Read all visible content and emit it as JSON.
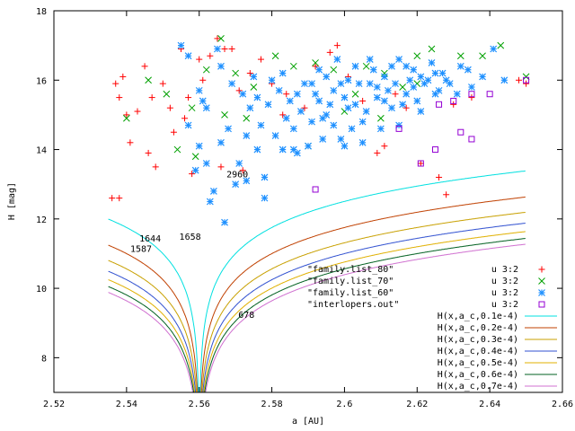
{
  "chart_data": {
    "type": "scatter",
    "xlabel": "a [AU]",
    "ylabel": "H [mag]",
    "xlim": [
      2.52,
      2.66
    ],
    "ylim": [
      7,
      18
    ],
    "x_ticks": [
      "2.52",
      "2.54",
      "2.56",
      "2.58",
      "2.6",
      "2.62",
      "2.64",
      "2.66"
    ],
    "y_ticks": [
      "8",
      "10",
      "12",
      "14",
      "16",
      "18"
    ],
    "grid": false,
    "legend_placement": "bottom-right",
    "series": [
      {
        "name": "\"family.list_80\"",
        "legend_sample": "u 3:2",
        "marker": "plus",
        "color": "#ff0000",
        "points": [
          [
            2.536,
            12.6
          ],
          [
            2.538,
            12.6
          ],
          [
            2.537,
            15.9
          ],
          [
            2.538,
            15.5
          ],
          [
            2.539,
            16.1
          ],
          [
            2.54,
            15.0
          ],
          [
            2.541,
            14.2
          ],
          [
            2.543,
            15.1
          ],
          [
            2.545,
            16.4
          ],
          [
            2.546,
            13.9
          ],
          [
            2.548,
            13.5
          ],
          [
            2.55,
            15.9
          ],
          [
            2.552,
            15.2
          ],
          [
            2.555,
            16.9
          ],
          [
            2.556,
            14.9
          ],
          [
            2.558,
            13.3
          ],
          [
            2.56,
            16.6
          ],
          [
            2.561,
            16.0
          ],
          [
            2.563,
            16.7
          ],
          [
            2.565,
            17.2
          ],
          [
            2.567,
            16.9
          ],
          [
            2.569,
            16.9
          ],
          [
            2.571,
            15.7
          ],
          [
            2.574,
            16.2
          ],
          [
            2.577,
            16.6
          ],
          [
            2.58,
            15.9
          ],
          [
            2.584,
            15.6
          ],
          [
            2.589,
            15.2
          ],
          [
            2.592,
            16.4
          ],
          [
            2.596,
            16.8
          ],
          [
            2.598,
            17.0
          ],
          [
            2.601,
            16.1
          ],
          [
            2.605,
            15.4
          ],
          [
            2.609,
            13.9
          ],
          [
            2.611,
            14.1
          ],
          [
            2.614,
            15.6
          ],
          [
            2.617,
            15.2
          ],
          [
            2.621,
            13.6
          ],
          [
            2.626,
            13.2
          ],
          [
            2.628,
            12.7
          ],
          [
            2.63,
            15.3
          ],
          [
            2.635,
            15.5
          ],
          [
            2.648,
            16.0
          ],
          [
            2.65,
            15.9
          ],
          [
            2.547,
            15.5
          ],
          [
            2.553,
            14.5
          ],
          [
            2.557,
            15.5
          ],
          [
            2.566,
            13.5
          ],
          [
            2.572,
            13.4
          ],
          [
            2.583,
            15.0
          ]
        ]
      },
      {
        "name": "\"family.list_70\"",
        "legend_sample": "u 3:2",
        "marker": "cross",
        "color": "#00a000",
        "points": [
          [
            2.54,
            14.9
          ],
          [
            2.546,
            16.0
          ],
          [
            2.551,
            15.6
          ],
          [
            2.558,
            15.2
          ],
          [
            2.562,
            16.3
          ],
          [
            2.566,
            17.2
          ],
          [
            2.57,
            16.2
          ],
          [
            2.575,
            15.8
          ],
          [
            2.581,
            16.7
          ],
          [
            2.586,
            16.4
          ],
          [
            2.592,
            16.5
          ],
          [
            2.597,
            16.3
          ],
          [
            2.603,
            15.6
          ],
          [
            2.606,
            16.4
          ],
          [
            2.611,
            16.2
          ],
          [
            2.616,
            15.8
          ],
          [
            2.62,
            16.7
          ],
          [
            2.624,
            16.9
          ],
          [
            2.632,
            16.7
          ],
          [
            2.638,
            16.7
          ],
          [
            2.643,
            17.0
          ],
          [
            2.65,
            16.1
          ],
          [
            2.567,
            15.0
          ],
          [
            2.573,
            14.9
          ],
          [
            2.59,
            14.1
          ],
          [
            2.6,
            15.1
          ],
          [
            2.61,
            14.9
          ],
          [
            2.62,
            15.9
          ],
          [
            2.559,
            13.8
          ],
          [
            2.554,
            14.0
          ]
        ]
      },
      {
        "name": "\"family.list_60\"",
        "legend_sample": "u 3:2",
        "marker": "star",
        "color": "#1e90ff",
        "points": [
          [
            2.555,
            17.0
          ],
          [
            2.557,
            16.7
          ],
          [
            2.56,
            15.7
          ],
          [
            2.562,
            15.2
          ],
          [
            2.565,
            16.9
          ],
          [
            2.568,
            14.6
          ],
          [
            2.57,
            13.0
          ],
          [
            2.572,
            15.6
          ],
          [
            2.575,
            16.1
          ],
          [
            2.577,
            14.7
          ],
          [
            2.579,
            15.3
          ],
          [
            2.581,
            14.4
          ],
          [
            2.583,
            16.2
          ],
          [
            2.585,
            15.4
          ],
          [
            2.587,
            13.9
          ],
          [
            2.589,
            15.9
          ],
          [
            2.591,
            14.8
          ],
          [
            2.593,
            16.3
          ],
          [
            2.595,
            15.0
          ],
          [
            2.597,
            15.7
          ],
          [
            2.599,
            14.3
          ],
          [
            2.601,
            16.0
          ],
          [
            2.603,
            15.3
          ],
          [
            2.605,
            14.8
          ],
          [
            2.607,
            15.9
          ],
          [
            2.609,
            15.5
          ],
          [
            2.611,
            16.1
          ],
          [
            2.613,
            15.2
          ],
          [
            2.615,
            14.7
          ],
          [
            2.617,
            16.4
          ],
          [
            2.619,
            15.8
          ],
          [
            2.621,
            15.1
          ],
          [
            2.623,
            16.0
          ],
          [
            2.625,
            15.6
          ],
          [
            2.627,
            16.2
          ],
          [
            2.629,
            15.9
          ],
          [
            2.632,
            16.4
          ],
          [
            2.635,
            15.8
          ],
          [
            2.638,
            16.1
          ],
          [
            2.641,
            16.9
          ],
          [
            2.644,
            16.0
          ],
          [
            2.563,
            12.5
          ],
          [
            2.566,
            14.2
          ],
          [
            2.571,
            13.6
          ],
          [
            2.574,
            15.2
          ],
          [
            2.576,
            14.0
          ],
          [
            2.578,
            13.2
          ],
          [
            2.582,
            15.7
          ],
          [
            2.586,
            14.6
          ],
          [
            2.588,
            15.1
          ],
          [
            2.59,
            14.1
          ],
          [
            2.592,
            15.6
          ],
          [
            2.594,
            14.9
          ],
          [
            2.596,
            15.3
          ],
          [
            2.598,
            16.6
          ],
          [
            2.6,
            15.5
          ],
          [
            2.602,
            14.6
          ],
          [
            2.604,
            15.9
          ],
          [
            2.606,
            15.1
          ],
          [
            2.608,
            16.3
          ],
          [
            2.61,
            14.6
          ],
          [
            2.612,
            15.7
          ],
          [
            2.614,
            15.9
          ],
          [
            2.616,
            15.3
          ],
          [
            2.618,
            16.0
          ],
          [
            2.62,
            15.4
          ],
          [
            2.622,
            15.9
          ],
          [
            2.624,
            16.5
          ],
          [
            2.626,
            15.7
          ],
          [
            2.628,
            16.0
          ],
          [
            2.631,
            15.6
          ],
          [
            2.634,
            16.3
          ],
          [
            2.566,
            16.4
          ],
          [
            2.569,
            15.9
          ],
          [
            2.573,
            14.4
          ],
          [
            2.58,
            16.0
          ],
          [
            2.584,
            14.9
          ],
          [
            2.591,
            15.9
          ],
          [
            2.595,
            16.1
          ],
          [
            2.599,
            15.9
          ],
          [
            2.603,
            16.4
          ],
          [
            2.607,
            16.6
          ],
          [
            2.611,
            15.4
          ],
          [
            2.615,
            16.6
          ],
          [
            2.619,
            16.3
          ],
          [
            2.56,
            14.1
          ],
          [
            2.562,
            13.6
          ],
          [
            2.564,
            12.8
          ],
          [
            2.567,
            11.9
          ],
          [
            2.573,
            13.1
          ],
          [
            2.578,
            12.6
          ],
          [
            2.586,
            14.0
          ],
          [
            2.594,
            14.3
          ],
          [
            2.6,
            14.1
          ],
          [
            2.605,
            14.2
          ],
          [
            2.557,
            14.7
          ],
          [
            2.559,
            13.4
          ],
          [
            2.561,
            15.4
          ],
          [
            2.576,
            15.5
          ],
          [
            2.583,
            14.0
          ],
          [
            2.587,
            15.6
          ],
          [
            2.593,
            15.4
          ],
          [
            2.597,
            14.7
          ],
          [
            2.601,
            15.2
          ],
          [
            2.609,
            15.8
          ],
          [
            2.613,
            16.4
          ],
          [
            2.617,
            15.6
          ],
          [
            2.621,
            16.1
          ],
          [
            2.625,
            16.2
          ]
        ]
      },
      {
        "name": "\"interlopers.out\"",
        "legend_sample": "u 3:2",
        "marker": "square",
        "color": "#9400d3",
        "points": [
          [
            2.592,
            12.85
          ],
          [
            2.615,
            14.6
          ],
          [
            2.621,
            13.6
          ],
          [
            2.625,
            14.0
          ],
          [
            2.632,
            14.5
          ],
          [
            2.635,
            14.3
          ],
          [
            2.63,
            15.4
          ],
          [
            2.635,
            15.6
          ],
          [
            2.64,
            15.6
          ],
          [
            2.65,
            16.0
          ],
          [
            2.626,
            15.3
          ]
        ]
      }
    ],
    "curves": [
      {
        "name": "H(x,a_c,0.1e-4)",
        "c": 0.1,
        "color": "#00e0e0"
      },
      {
        "name": "H(x,a_c,0.2e-4)",
        "c": 0.2,
        "color": "#c04000"
      },
      {
        "name": "H(x,a_c,0.3e-4)",
        "c": 0.3,
        "color": "#c8a000"
      },
      {
        "name": "H(x,a_c,0.4e-4)",
        "c": 0.4,
        "color": "#3050d0"
      },
      {
        "name": "H(x,a_c,0.5e-4)",
        "c": 0.5,
        "color": "#e0b000"
      },
      {
        "name": "H(x,a_c,0.6e-4)",
        "c": 0.6,
        "color": "#006020"
      },
      {
        "name": "H(x,a_c,0.7e-4)",
        "c": 0.7,
        "color": "#d070d0"
      }
    ],
    "curve_center": 2.56,
    "curve_model": {
      "h0": 3.5,
      "k": 2.5,
      "floor": 7
    },
    "annotations": [
      {
        "text": "2960",
        "x": 2.5705,
        "y": 13.2
      },
      {
        "text": "1658",
        "x": 2.5575,
        "y": 11.4
      },
      {
        "text": "1644",
        "x": 2.5465,
        "y": 11.35
      },
      {
        "text": "1587",
        "x": 2.544,
        "y": 11.05
      },
      {
        "text": "678",
        "x": 2.573,
        "y": 9.15
      }
    ]
  }
}
